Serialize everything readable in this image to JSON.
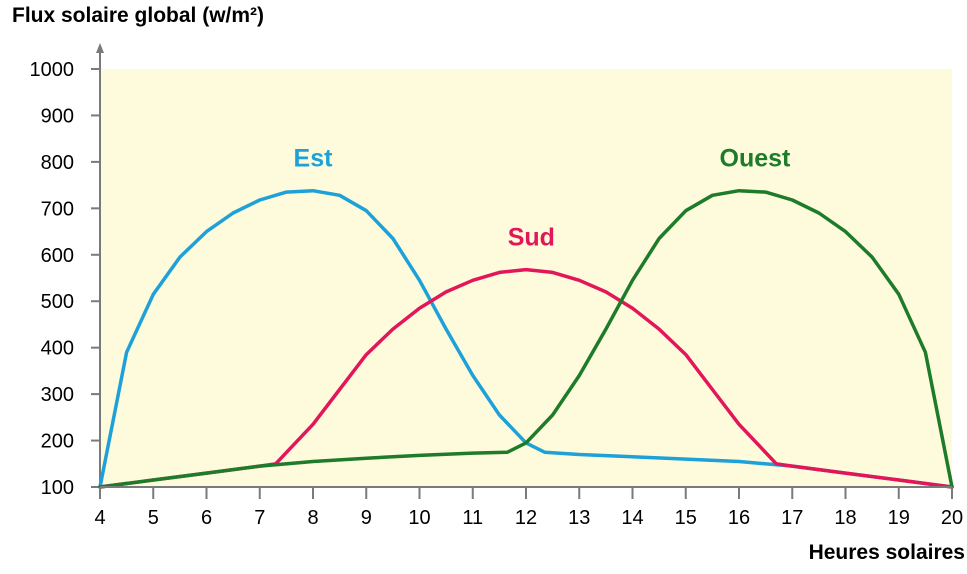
{
  "chart_data": {
    "type": "line",
    "title": "",
    "ylabel": "Flux solaire global (w/m²)",
    "xlabel": "Heures solaires",
    "xlim": [
      4,
      20
    ],
    "ylim": [
      100,
      1000
    ],
    "x_ticks": [
      4,
      5,
      6,
      7,
      8,
      9,
      10,
      11,
      12,
      13,
      14,
      15,
      16,
      17,
      18,
      19,
      20
    ],
    "y_ticks": [
      100,
      200,
      300,
      400,
      500,
      600,
      700,
      800,
      900,
      1000
    ],
    "grid": false,
    "background_color": "#fdfbdc",
    "series": [
      {
        "name": "Est",
        "color": "#1da1d8",
        "label_x": 8,
        "label_y": 790,
        "points": [
          [
            4,
            100
          ],
          [
            4.5,
            390
          ],
          [
            5,
            515
          ],
          [
            5.5,
            595
          ],
          [
            6,
            650
          ],
          [
            6.5,
            690
          ],
          [
            7,
            718
          ],
          [
            7.5,
            735
          ],
          [
            8,
            738
          ],
          [
            8.5,
            728
          ],
          [
            9,
            695
          ],
          [
            9.5,
            635
          ],
          [
            10,
            545
          ],
          [
            10.5,
            440
          ],
          [
            11,
            340
          ],
          [
            11.5,
            255
          ],
          [
            12,
            195
          ],
          [
            12.35,
            175
          ],
          [
            13,
            170
          ],
          [
            14,
            165
          ],
          [
            15,
            160
          ],
          [
            16,
            155
          ],
          [
            17,
            145
          ],
          [
            18,
            130
          ],
          [
            19,
            115
          ],
          [
            20,
            100
          ]
        ]
      },
      {
        "name": "Sud",
        "color": "#e3165a",
        "label_x": 12.1,
        "label_y": 620,
        "points": [
          [
            4,
            100
          ],
          [
            5,
            115
          ],
          [
            6,
            130
          ],
          [
            7,
            145
          ],
          [
            7.3,
            150
          ],
          [
            8,
            235
          ],
          [
            8.5,
            310
          ],
          [
            9,
            385
          ],
          [
            9.5,
            440
          ],
          [
            10,
            485
          ],
          [
            10.5,
            520
          ],
          [
            11,
            545
          ],
          [
            11.5,
            562
          ],
          [
            12,
            568
          ],
          [
            12.5,
            562
          ],
          [
            13,
            545
          ],
          [
            13.5,
            520
          ],
          [
            14,
            485
          ],
          [
            14.5,
            440
          ],
          [
            15,
            385
          ],
          [
            15.5,
            310
          ],
          [
            16,
            235
          ],
          [
            16.7,
            150
          ],
          [
            17,
            145
          ],
          [
            18,
            130
          ],
          [
            19,
            115
          ],
          [
            20,
            100
          ]
        ]
      },
      {
        "name": "Ouest",
        "color": "#1d7b2a",
        "label_x": 16.3,
        "label_y": 790,
        "points": [
          [
            4,
            100
          ],
          [
            5,
            115
          ],
          [
            6,
            130
          ],
          [
            7,
            145
          ],
          [
            8,
            155
          ],
          [
            9,
            162
          ],
          [
            10,
            168
          ],
          [
            11,
            173
          ],
          [
            11.65,
            175
          ],
          [
            12,
            195
          ],
          [
            12.5,
            255
          ],
          [
            13,
            340
          ],
          [
            13.5,
            440
          ],
          [
            14,
            545
          ],
          [
            14.5,
            635
          ],
          [
            15,
            695
          ],
          [
            15.5,
            728
          ],
          [
            16,
            738
          ],
          [
            16.5,
            735
          ],
          [
            17,
            718
          ],
          [
            17.5,
            690
          ],
          [
            18,
            650
          ],
          [
            18.5,
            595
          ],
          [
            19,
            515
          ],
          [
            19.5,
            390
          ],
          [
            20,
            100
          ]
        ]
      }
    ]
  }
}
